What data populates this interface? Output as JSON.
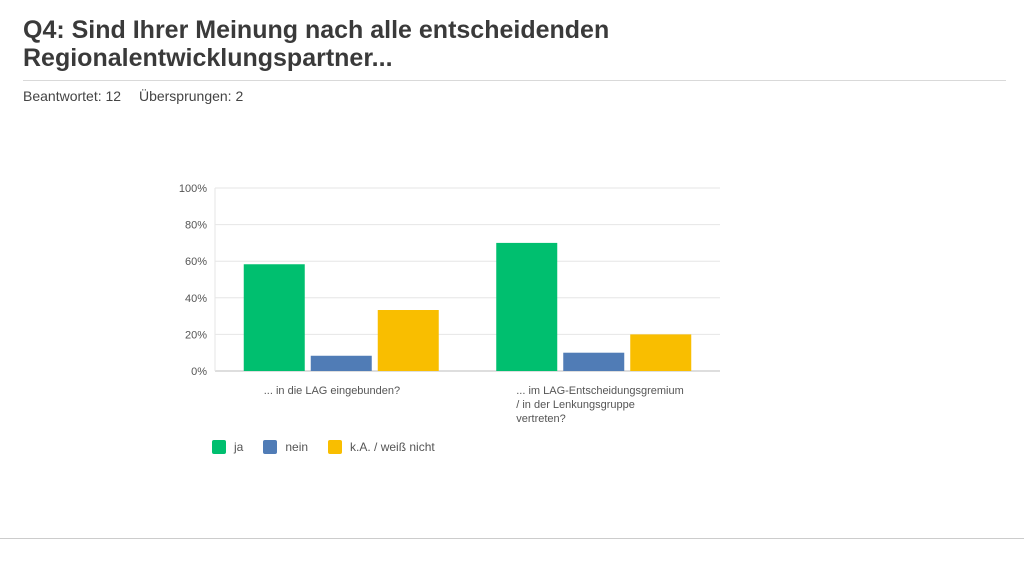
{
  "page": {
    "title": "Q4: Sind Ihrer Meinung nach alle entscheidenden Regionalentwicklungspartner...",
    "answered": "Beantwortet: 12",
    "skipped": "Übersprungen: 2"
  },
  "chart_data": {
    "type": "bar",
    "categories": [
      [
        "... in die LAG eingebunden?"
      ],
      [
        "... im LAG-Entscheidungsgremium",
        "/ in der Lenkungsgruppe",
        "vertreten?"
      ]
    ],
    "series": [
      {
        "name": "ja",
        "color": "#00bf6f",
        "values": [
          58.33,
          70
        ]
      },
      {
        "name": "nein",
        "color": "#507cb6",
        "values": [
          8.33,
          10
        ]
      },
      {
        "name": "k.A. / weiß nicht",
        "color": "#f9be00",
        "values": [
          33.33,
          20
        ]
      }
    ],
    "y_ticks": [
      "0%",
      "20%",
      "40%",
      "60%",
      "80%",
      "100%"
    ],
    "ylim": [
      0,
      100
    ],
    "grid": true,
    "legend_position": "bottom-left"
  }
}
